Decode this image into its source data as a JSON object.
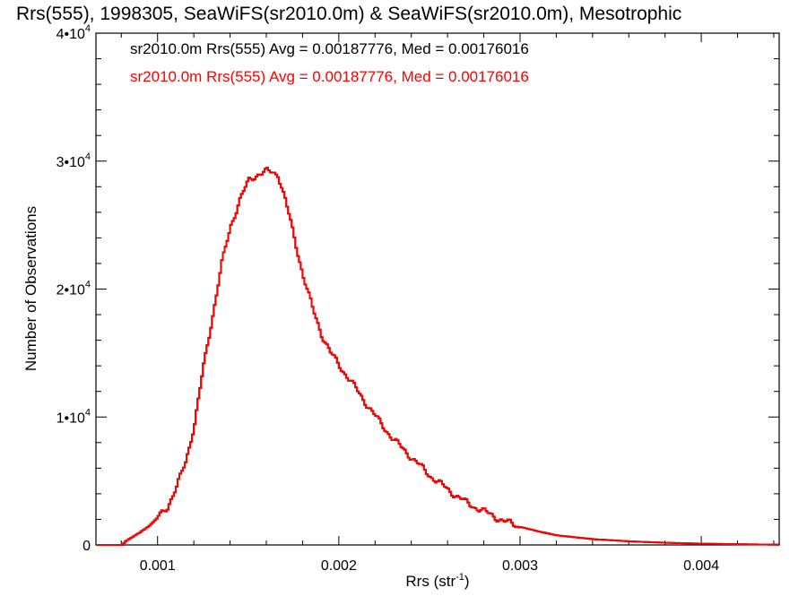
{
  "chart_data": {
    "type": "histogram-step",
    "title": "Rrs(555), 1998305, SeaWiFS(sr2010.0m) & SeaWiFS(sr2010.0m), Mesotrophic",
    "xlabel": "Rrs (str",
    "xlabel_sup": "-1",
    "xlabel_end": ")",
    "ylabel": "Number of Observations",
    "xlim": [
      0.00066,
      0.00443
    ],
    "ylim": [
      0,
      40000
    ],
    "x_ticks": [
      {
        "value": 0.001,
        "label": "0.001"
      },
      {
        "value": 0.002,
        "label": "0.002"
      },
      {
        "value": 0.003,
        "label": "0.003"
      },
      {
        "value": 0.004,
        "label": "0.004"
      }
    ],
    "y_ticks": [
      {
        "value": 0,
        "label": "0"
      },
      {
        "value": 10000,
        "mantissa": "1",
        "exp": "4"
      },
      {
        "value": 20000,
        "mantissa": "2",
        "exp": "4"
      },
      {
        "value": 30000,
        "mantissa": "3",
        "exp": "4"
      },
      {
        "value": 40000,
        "mantissa": "4",
        "exp": "4"
      }
    ],
    "annotations": [
      {
        "text": "sr2010.0m Rrs(555) Avg = 0.00187776, Med = 0.00176016",
        "color": "#000000"
      },
      {
        "text": "sr2010.0m Rrs(555) Avg = 0.00187776, Med = 0.00176016",
        "color": "#ff0000"
      }
    ],
    "series": [
      {
        "color": "#000000",
        "x": [
          0.00066,
          0.0008,
          0.00082,
          0.0009,
          0.00095,
          0.001,
          0.00105,
          0.0011,
          0.00115,
          0.0012,
          0.00125,
          0.0013,
          0.00135,
          0.0014,
          0.00145,
          0.0015,
          0.00155,
          0.0016,
          0.00163,
          0.00166,
          0.0017,
          0.00175,
          0.0018,
          0.00185,
          0.0019,
          0.00195,
          0.002,
          0.0021,
          0.0022,
          0.0023,
          0.0024,
          0.0025,
          0.0026,
          0.0027,
          0.0028,
          0.0029,
          0.003,
          0.0031,
          0.0032,
          0.0034,
          0.0036,
          0.0038,
          0.004,
          0.0042,
          0.00443
        ],
        "y": [
          0,
          0,
          300,
          1000,
          1500,
          2200,
          3000,
          4500,
          6500,
          9500,
          14000,
          18000,
          22000,
          25000,
          27000,
          28500,
          29000,
          29200,
          29100,
          29000,
          27000,
          24000,
          21000,
          18500,
          16500,
          15000,
          14000,
          12000,
          10000,
          8200,
          6800,
          5400,
          4300,
          3300,
          2600,
          1900,
          1400,
          1050,
          750,
          450,
          280,
          170,
          100,
          55,
          20
        ]
      },
      {
        "color": "#ff0000",
        "x": [
          0.00066,
          0.0008,
          0.00082,
          0.0009,
          0.00095,
          0.001,
          0.00105,
          0.0011,
          0.00115,
          0.0012,
          0.00125,
          0.0013,
          0.00135,
          0.0014,
          0.00145,
          0.0015,
          0.00155,
          0.0016,
          0.00163,
          0.00166,
          0.0017,
          0.00175,
          0.0018,
          0.00185,
          0.0019,
          0.00195,
          0.002,
          0.0021,
          0.0022,
          0.0023,
          0.0024,
          0.0025,
          0.0026,
          0.0027,
          0.0028,
          0.0029,
          0.003,
          0.0031,
          0.0032,
          0.0034,
          0.0036,
          0.0038,
          0.004,
          0.0042,
          0.00443
        ],
        "y": [
          0,
          0,
          300,
          1000,
          1500,
          2200,
          3000,
          4500,
          6500,
          9500,
          14000,
          18000,
          22000,
          25000,
          27000,
          28500,
          29000,
          29200,
          29100,
          29000,
          27000,
          24000,
          21000,
          18500,
          16500,
          15000,
          14000,
          12000,
          10000,
          8200,
          6800,
          5400,
          4300,
          3300,
          2600,
          1900,
          1400,
          1050,
          750,
          450,
          280,
          170,
          100,
          55,
          20
        ]
      }
    ],
    "grid": false
  }
}
